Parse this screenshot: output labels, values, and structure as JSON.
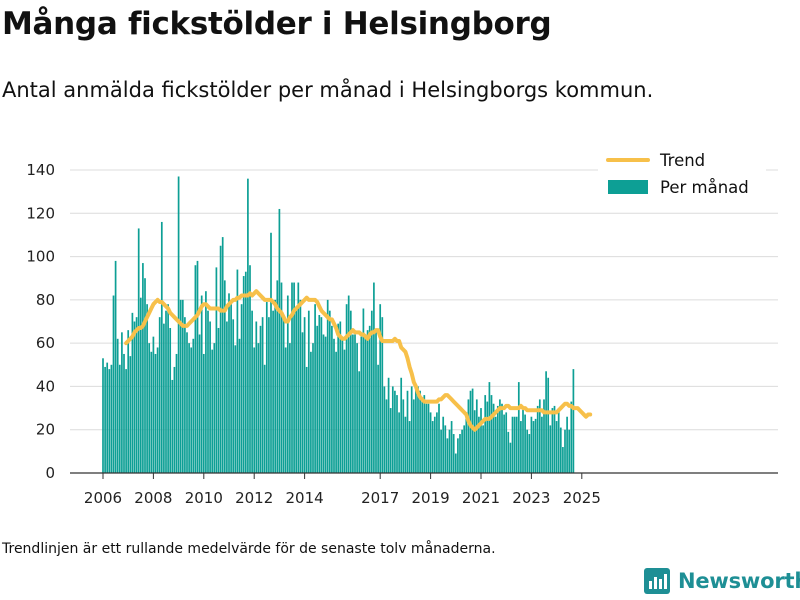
{
  "header": {
    "title": "Många fickstölder i Helsingborg",
    "subtitle": "Antal anmälda fickstölder per månad i Helsingborgs kommun."
  },
  "footer": {
    "note": "Trendlinjen är ett rullande medelvärde för de senaste tolv månaderna.",
    "brand": "Newsworthy"
  },
  "colors": {
    "bars": "#0d9f95",
    "trend": "#f7c04a",
    "grid": "#dcdcdc",
    "brand": "#1e8f95"
  },
  "chart_data": {
    "type": "bar",
    "title": "Många fickstölder i Helsingborg",
    "subtitle": "Antal anmälda fickstölder per månad i Helsingborgs kommun.",
    "ylim": [
      0,
      140
    ],
    "yticks": [
      0,
      20,
      40,
      60,
      80,
      100,
      120,
      140
    ],
    "xticks": [
      "2006",
      "2008",
      "2010",
      "2012",
      "2014",
      "2017",
      "2019",
      "2021",
      "2023",
      "2025"
    ],
    "grid": true,
    "legend_position": "top-right",
    "start": "2006-01",
    "series": [
      {
        "name": "Per månad",
        "type": "bar",
        "values": [
          53,
          49,
          51,
          48,
          50,
          82,
          98,
          62,
          50,
          65,
          55,
          48,
          66,
          54,
          74,
          70,
          72,
          113,
          81,
          97,
          90,
          78,
          60,
          56,
          63,
          55,
          58,
          72,
          116,
          69,
          75,
          78,
          67,
          43,
          49,
          55,
          137,
          80,
          80,
          72,
          65,
          60,
          58,
          62,
          96,
          98,
          64,
          82,
          55,
          84,
          75,
          70,
          57,
          60,
          95,
          67,
          105,
          109,
          89,
          70,
          83,
          78,
          71,
          59,
          94,
          62,
          78,
          91,
          93,
          136,
          96,
          75,
          58,
          70,
          60,
          68,
          72,
          50,
          79,
          72,
          111,
          75,
          80,
          89,
          122,
          88,
          72,
          58,
          82,
          60,
          88,
          88,
          75,
          88,
          80,
          65,
          72,
          49,
          75,
          56,
          60,
          78,
          68,
          73,
          72,
          64,
          63,
          80,
          75,
          68,
          62,
          56,
          69,
          70,
          62,
          57,
          78,
          82,
          75,
          64,
          64,
          60,
          47,
          63,
          76,
          64,
          66,
          68,
          75,
          88,
          65,
          50,
          78,
          72,
          40,
          34,
          44,
          30,
          40,
          38,
          36,
          28,
          44,
          34,
          26,
          38,
          24,
          40,
          34,
          40,
          40,
          38,
          34,
          36,
          32,
          32,
          28,
          24,
          26,
          28,
          32,
          20,
          26,
          22,
          16,
          20,
          24,
          18,
          9,
          16,
          18,
          20,
          22,
          28,
          34,
          38,
          39,
          29,
          34,
          26,
          30,
          22,
          36,
          33,
          42,
          36,
          32,
          26,
          31,
          34,
          32,
          27,
          28,
          19,
          14,
          26,
          26,
          26,
          42,
          24,
          30,
          27,
          20,
          18,
          26,
          24,
          25,
          31,
          34,
          26,
          34,
          47,
          44,
          22,
          30,
          31,
          24,
          30,
          21,
          12,
          20,
          26,
          20,
          33,
          48
        ]
      },
      {
        "name": "Trend",
        "type": "line",
        "start": "2006-12",
        "values": [
          60,
          61,
          62,
          63,
          65,
          66,
          67,
          67,
          68,
          70,
          72,
          74,
          76,
          78,
          79,
          80,
          79,
          79,
          78,
          77,
          76,
          74,
          73,
          72,
          71,
          70,
          69,
          68,
          68,
          68,
          69,
          70,
          71,
          72,
          73,
          75,
          77,
          78,
          78,
          77,
          76,
          76,
          76,
          76,
          76,
          75,
          75,
          75,
          77,
          78,
          79,
          80,
          80,
          81,
          81,
          82,
          82,
          82,
          82,
          83,
          82,
          83,
          84,
          83,
          82,
          81,
          80,
          80,
          80,
          80,
          79,
          78,
          76,
          75,
          74,
          72,
          70,
          70,
          72,
          73,
          75,
          76,
          77,
          78,
          79,
          80,
          81,
          80,
          80,
          80,
          80,
          79,
          77,
          75,
          74,
          73,
          72,
          71,
          71,
          69,
          67,
          64,
          63,
          62,
          62,
          63,
          64,
          65,
          66,
          65,
          65,
          65,
          64,
          64,
          63,
          62,
          64,
          65,
          65,
          66,
          66,
          63,
          61,
          61,
          61,
          61,
          61,
          61,
          62,
          61,
          61,
          58,
          57,
          56,
          53,
          49,
          46,
          42,
          40,
          37,
          35,
          34,
          33,
          33,
          33,
          33,
          33,
          33,
          33,
          34,
          34,
          35,
          36,
          36,
          35,
          34,
          33,
          32,
          31,
          30,
          29,
          28,
          27,
          24,
          22,
          21,
          20,
          21,
          22,
          23,
          24,
          25,
          25,
          25,
          26,
          27,
          28,
          29,
          30,
          30,
          30,
          31,
          31,
          30,
          30,
          30,
          30,
          30,
          31,
          30,
          30,
          29,
          29,
          29,
          29,
          29,
          29,
          29,
          29,
          28,
          28,
          28,
          28,
          28,
          28,
          28,
          29,
          30,
          31,
          32,
          32,
          31,
          31,
          30,
          30,
          30,
          29,
          28,
          27,
          26,
          27,
          27
        ]
      }
    ]
  }
}
